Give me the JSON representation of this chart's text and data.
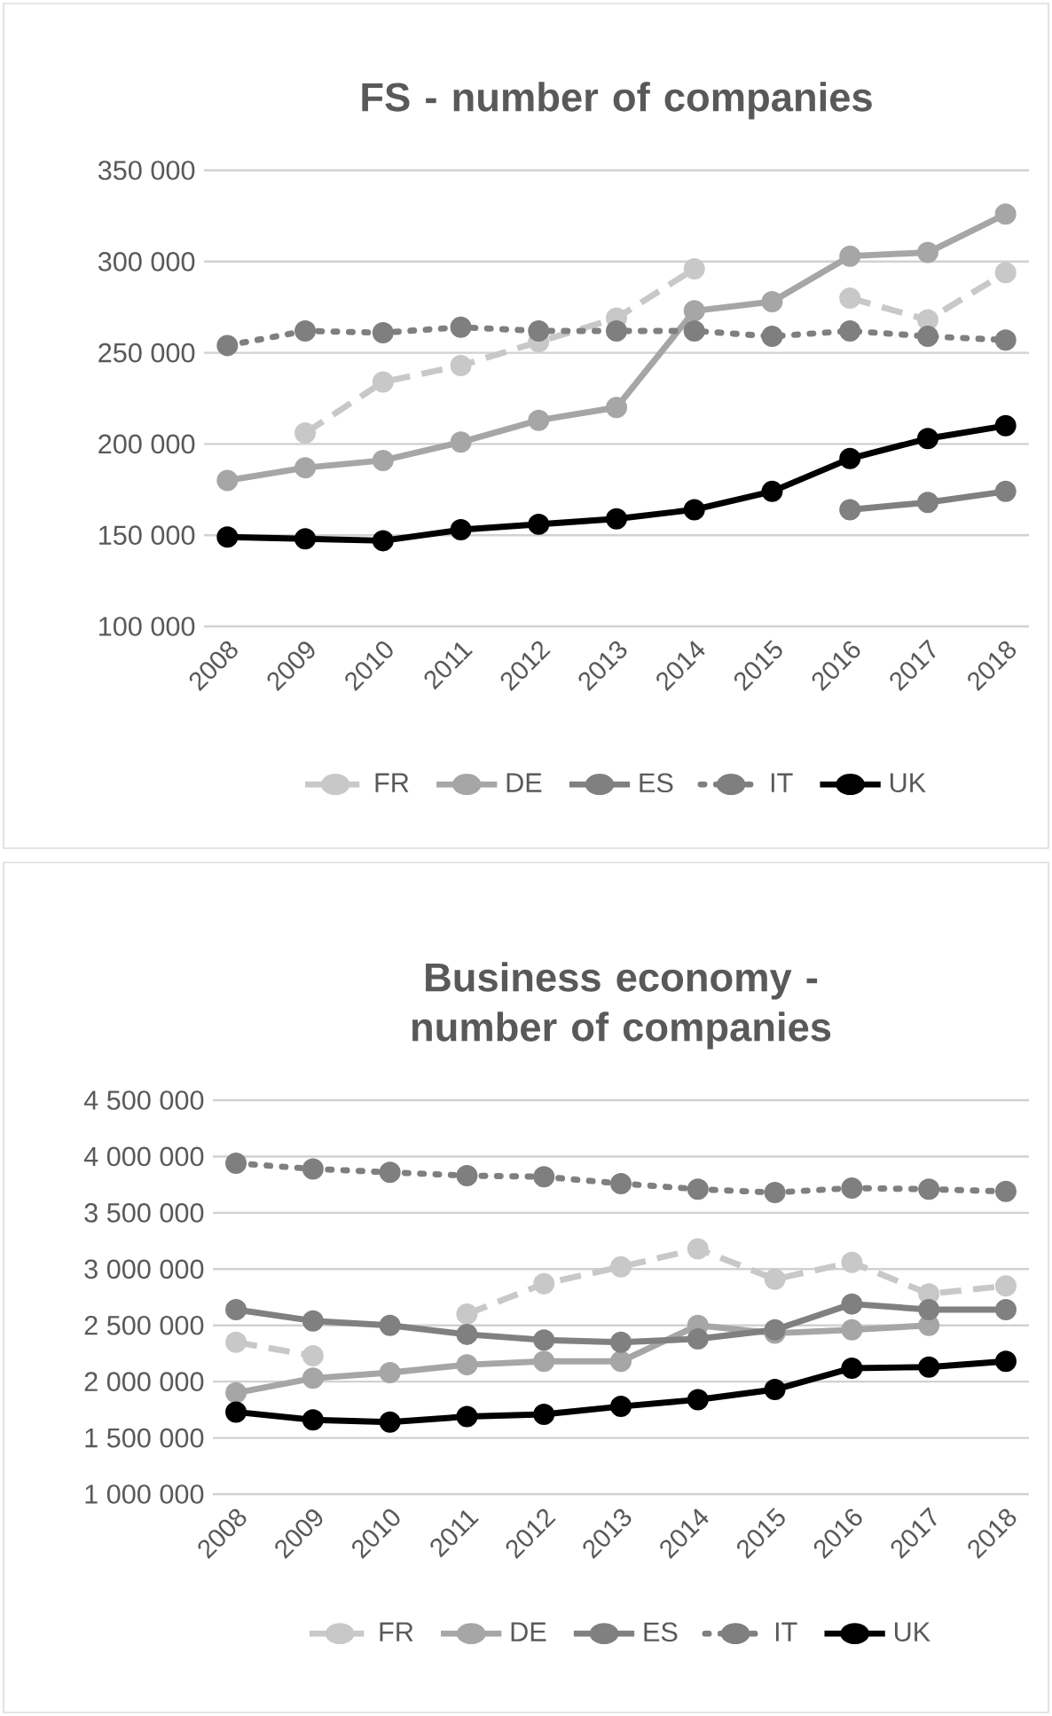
{
  "chart_data": [
    {
      "type": "line",
      "title": "FS - number of companies",
      "categories": [
        "2008",
        "2009",
        "2010",
        "2011",
        "2012",
        "2013",
        "2014",
        "2015",
        "2016",
        "2017",
        "2018"
      ],
      "series": [
        {
          "name": "FR",
          "color": "#c8c8c8",
          "line_style": "dashed",
          "values": [
            null,
            206000,
            234000,
            243000,
            256000,
            269000,
            296000,
            null,
            280000,
            268000,
            294000
          ]
        },
        {
          "name": "DE",
          "color": "#a6a6a6",
          "line_style": "solid",
          "values": [
            180000,
            187000,
            191000,
            201000,
            213000,
            220000,
            273000,
            278000,
            303000,
            305000,
            326000
          ]
        },
        {
          "name": "ES",
          "color": "#808080",
          "line_style": "solid",
          "values": [
            null,
            null,
            null,
            null,
            null,
            null,
            null,
            null,
            164000,
            168000,
            174000
          ]
        },
        {
          "name": "IT",
          "color": "#7f7f7f",
          "line_style": "dotted",
          "values": [
            254000,
            262000,
            261000,
            264000,
            262000,
            262000,
            262000,
            259000,
            262000,
            259000,
            257000
          ]
        },
        {
          "name": "UK",
          "color": "#000000",
          "line_style": "solid",
          "values": [
            149000,
            148000,
            147000,
            153000,
            156000,
            159000,
            164000,
            174000,
            192000,
            203000,
            210000
          ]
        }
      ],
      "ylim": [
        100000,
        350000
      ],
      "yticks": [
        {
          "value": 100000,
          "label": "100 000"
        },
        {
          "value": 150000,
          "label": "150 000"
        },
        {
          "value": 200000,
          "label": "200 000"
        },
        {
          "value": 250000,
          "label": "250 000"
        },
        {
          "value": 300000,
          "label": "300 000"
        },
        {
          "value": 350000,
          "label": "350 000"
        }
      ],
      "grid": "y",
      "legend": "bottom",
      "marker": "circle"
    },
    {
      "type": "line",
      "title": "Business economy - number of companies",
      "categories": [
        "2008",
        "2009",
        "2010",
        "2011",
        "2012",
        "2013",
        "2014",
        "2015",
        "2016",
        "2017",
        "2018"
      ],
      "series": [
        {
          "name": "FR",
          "color": "#c8c8c8",
          "line_style": "dashed",
          "values": [
            2350000,
            2230000,
            null,
            2600000,
            2870000,
            3020000,
            3180000,
            2910000,
            3060000,
            2780000,
            2850000
          ]
        },
        {
          "name": "DE",
          "color": "#a6a6a6",
          "line_style": "solid",
          "values": [
            1900000,
            2030000,
            2080000,
            2150000,
            2180000,
            2180000,
            2500000,
            2430000,
            2460000,
            2500000,
            null
          ]
        },
        {
          "name": "ES",
          "color": "#808080",
          "line_style": "solid",
          "values": [
            2640000,
            2540000,
            2500000,
            2420000,
            2370000,
            2350000,
            2380000,
            2460000,
            2690000,
            2640000,
            2640000
          ]
        },
        {
          "name": "IT",
          "color": "#7f7f7f",
          "line_style": "dotted",
          "values": [
            3940000,
            3890000,
            3860000,
            3830000,
            3820000,
            3760000,
            3710000,
            3680000,
            3720000,
            3710000,
            3690000
          ]
        },
        {
          "name": "UK",
          "color": "#000000",
          "line_style": "solid",
          "values": [
            1730000,
            1660000,
            1640000,
            1690000,
            1710000,
            1780000,
            1840000,
            1930000,
            2120000,
            2130000,
            2180000
          ]
        }
      ],
      "ylim": [
        1000000,
        4500000
      ],
      "yticks": [
        {
          "value": 1000000,
          "label": "1 000 000"
        },
        {
          "value": 1500000,
          "label": "1 500 000"
        },
        {
          "value": 2000000,
          "label": "2 000 000"
        },
        {
          "value": 2500000,
          "label": "2 500 000"
        },
        {
          "value": 3000000,
          "label": "3 000 000"
        },
        {
          "value": 3500000,
          "label": "3 500 000"
        },
        {
          "value": 4000000,
          "label": "4 000 000"
        },
        {
          "value": 4500000,
          "label": "4 500 000"
        }
      ],
      "grid": "y",
      "legend": "bottom",
      "marker": "circle"
    }
  ]
}
